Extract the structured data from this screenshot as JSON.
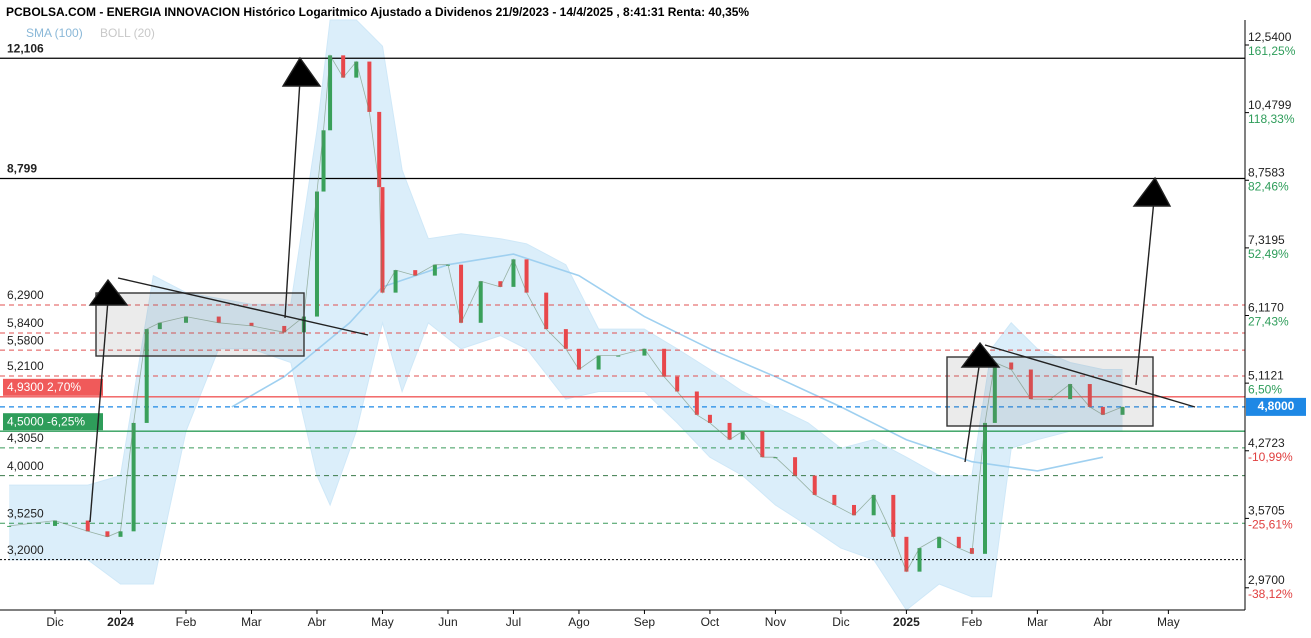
{
  "chart_data": {
    "type": "candlestick",
    "title": "PCBOLSA.COM - ENERGIA INNOVACION Histórico Logaritmico Ajustado a Dividenos 21/9/2023 - 14/4/2025 , 8:41:31 Renta: 40,35%",
    "log_y": true,
    "up_color": "#3aa05a",
    "down_color": "#e8474b",
    "x": [
      0.3,
      1.0,
      1.5,
      1.8,
      2.0,
      2.2,
      2.4,
      2.6,
      3.0,
      3.5,
      4.0,
      4.5,
      4.8,
      5.0,
      5.1,
      5.2,
      5.4,
      5.6,
      5.8,
      5.95,
      6.0,
      6.2,
      6.5,
      6.8,
      7.0,
      7.2,
      7.5,
      7.8,
      8.0,
      8.2,
      8.5,
      8.8,
      9.0,
      9.3,
      9.6,
      10.0,
      10.3,
      10.5,
      10.8,
      11.0,
      11.3,
      11.5,
      11.8,
      12.0,
      12.3,
      12.6,
      12.9,
      13.2,
      13.5,
      13.8,
      14.0,
      14.2,
      14.5,
      14.8,
      15.0,
      15.2,
      15.35,
      15.6,
      15.9,
      16.2,
      16.5,
      16.8,
      17.0,
      17.3
    ],
    "values": [
      3.5,
      3.55,
      3.45,
      3.4,
      3.45,
      4.6,
      5.9,
      6.0,
      6.1,
      6.0,
      5.95,
      5.85,
      6.1,
      8.5,
      10.0,
      12.2,
      11.5,
      12.0,
      10.5,
      8.6,
      6.5,
      6.9,
      6.8,
      7.0,
      7.0,
      6.0,
      6.7,
      6.6,
      7.1,
      6.5,
      5.9,
      5.6,
      5.3,
      5.5,
      5.5,
      5.6,
      5.2,
      5.0,
      4.7,
      4.6,
      4.4,
      4.5,
      4.2,
      4.2,
      4.0,
      3.8,
      3.7,
      3.6,
      3.8,
      3.4,
      3.1,
      3.3,
      3.4,
      3.3,
      3.25,
      4.6,
      5.4,
      5.3,
      4.9,
      4.9,
      5.1,
      4.8,
      4.7,
      4.8
    ],
    "bands": {
      "name": "BOLL (20)",
      "color": "#cfe8f8",
      "x": [
        0.3,
        1.5,
        2.0,
        2.5,
        3.0,
        3.5,
        4.0,
        4.6,
        5.0,
        5.2,
        5.6,
        6.0,
        6.3,
        6.7,
        7.2,
        7.8,
        8.2,
        8.8,
        9.3,
        10.0,
        10.5,
        11.0,
        11.5,
        12.0,
        12.5,
        13.0,
        13.5,
        14.0,
        14.5,
        15.0,
        15.3,
        15.6,
        16.0,
        16.5,
        17.0,
        17.3
      ],
      "upper": [
        3.9,
        3.9,
        4.0,
        6.8,
        6.5,
        6.4,
        6.3,
        6.3,
        10,
        13.4,
        13.4,
        12.5,
        9.0,
        7.5,
        7.6,
        7.5,
        7.4,
        7.0,
        5.9,
        5.9,
        5.6,
        5.3,
        5.0,
        4.8,
        4.6,
        4.3,
        4.4,
        4.2,
        4.0,
        4.0,
        5.6,
        6.0,
        5.6,
        5.4,
        5.3,
        5.3
      ],
      "lower": [
        3.2,
        3.2,
        3.0,
        3.0,
        4.5,
        5.6,
        5.6,
        5.4,
        4.0,
        3.7,
        4.5,
        6.0,
        5.0,
        6.0,
        5.6,
        5.8,
        5.6,
        4.9,
        5.0,
        5.0,
        4.6,
        4.2,
        4.0,
        3.7,
        3.5,
        3.3,
        3.2,
        2.8,
        3.0,
        2.9,
        2.9,
        4.3,
        4.4,
        4.5,
        4.5,
        4.5
      ]
    },
    "sma": {
      "name": "SMA (100)",
      "color": "#9fd0f0",
      "x": [
        3.7,
        4.5,
        5.5,
        6.0,
        7.0,
        8.0,
        9.0,
        10.0,
        11.0,
        12.0,
        13.0,
        14.0,
        15.0,
        16.0,
        17.0
      ],
      "values": [
        4.8,
        5.2,
        6.0,
        6.6,
        7.0,
        7.2,
        6.8,
        6.1,
        5.6,
        5.2,
        4.8,
        4.4,
        4.15,
        4.05,
        4.2
      ]
    },
    "levels": [
      {
        "value": 12.106,
        "label": "12,106",
        "style": "solid",
        "color": "#000000"
      },
      {
        "value": 8.799,
        "label": "8,799",
        "style": "solid",
        "color": "#000000"
      },
      {
        "value": 6.29,
        "label": "6,2900",
        "style": "dashed",
        "color": "#e05050"
      },
      {
        "value": 5.84,
        "label": "5,8400",
        "style": "dashed",
        "color": "#e05050"
      },
      {
        "value": 5.58,
        "label": "5,5800",
        "style": "dashed",
        "color": "#e05050"
      },
      {
        "value": 5.21,
        "label": "5,2100",
        "style": "dashed",
        "color": "#e05050"
      },
      {
        "value": 4.93,
        "label": "4,9300  2,70%",
        "style": "solid",
        "color": "#f05a5a",
        "box": true
      },
      {
        "value": 4.5,
        "label": "4,5000  -6,25%",
        "style": "solid",
        "color": "#2e9d5a",
        "box": true
      },
      {
        "value": 4.305,
        "label": "4,3050",
        "style": "dashed",
        "color": "#3a9a5a"
      },
      {
        "value": 4.0,
        "label": "4,0000",
        "style": "dashed",
        "color": "#3a7a4a"
      },
      {
        "value": 3.525,
        "label": "3,5250",
        "style": "dashed",
        "color": "#3a9a5a"
      },
      {
        "value": 3.2,
        "label": "3,2000",
        "style": "dotted",
        "color": "#000000"
      }
    ],
    "last": {
      "value": 4.8,
      "label": "4,8000",
      "color": "#1e88e5"
    },
    "ylim": [
      2.8,
      13.4
    ],
    "yticks": [
      {
        "value": 12.54,
        "label": "12,5400",
        "pct": "161,25%"
      },
      {
        "value": 10.4799,
        "label": "10,4799",
        "pct": "118,33%"
      },
      {
        "value": 8.7583,
        "label": "8,7583",
        "pct": "82,46%"
      },
      {
        "value": 7.3195,
        "label": "7,3195",
        "pct": "52,49%"
      },
      {
        "value": 6.117,
        "label": "6,1170",
        "pct": "27,43%"
      },
      {
        "value": 5.1121,
        "label": "5,1121",
        "pct": "6,50%"
      },
      {
        "value": 4.2723,
        "label": "4,2723",
        "pct": "-10,99%"
      },
      {
        "value": 3.5705,
        "label": "3,5705",
        "pct": "-25,61%"
      },
      {
        "value": 2.97,
        "label": "2,9700",
        "pct": "-38,12%"
      }
    ],
    "xlim": [
      0.16,
      19.17
    ],
    "xticks": [
      {
        "value": 1,
        "label": "Dic"
      },
      {
        "value": 2,
        "label": "2024"
      },
      {
        "value": 3,
        "label": "Feb"
      },
      {
        "value": 4,
        "label": "Mar"
      },
      {
        "value": 5,
        "label": "Abr"
      },
      {
        "value": 6,
        "label": "May"
      },
      {
        "value": 7,
        "label": "Jun"
      },
      {
        "value": 8,
        "label": "Jul"
      },
      {
        "value": 9,
        "label": "Ago"
      },
      {
        "value": 10,
        "label": "Sep"
      },
      {
        "value": 11,
        "label": "Oct"
      },
      {
        "value": 12,
        "label": "Nov"
      },
      {
        "value": 13,
        "label": "Dic"
      },
      {
        "value": 14,
        "label": "2025"
      },
      {
        "value": 15,
        "label": "Feb"
      },
      {
        "value": 16,
        "label": "Mar"
      },
      {
        "value": 17,
        "label": "Abr"
      },
      {
        "value": 18,
        "label": "May"
      }
    ]
  }
}
